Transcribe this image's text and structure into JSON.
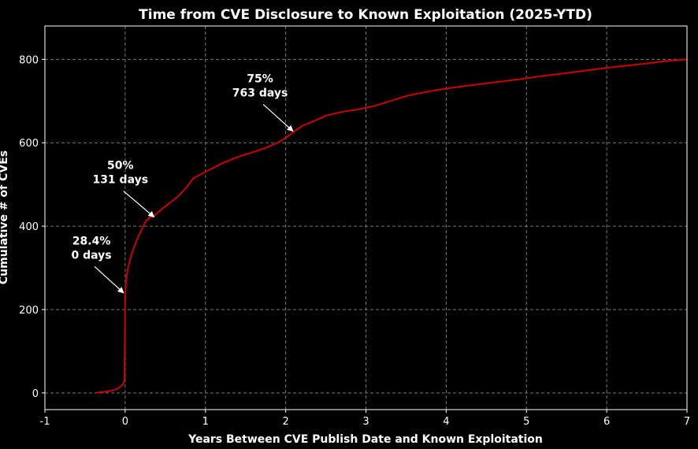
{
  "chart_data": {
    "type": "line",
    "title": "Time from CVE Disclosure to Known Exploitation (2025-YTD)",
    "xlabel": "Years Between CVE Publish Date and Known Exploitation",
    "ylabel": "Cumulative # of CVEs",
    "xlim": [
      -1,
      7
    ],
    "ylim": [
      -40,
      880
    ],
    "xticks": [
      "-1",
      "0",
      "1",
      "2",
      "3",
      "4",
      "5",
      "6",
      "7"
    ],
    "yticks": [
      "0",
      "200",
      "400",
      "600",
      "800"
    ],
    "grid": true,
    "line_color": "#cc0000",
    "series": [
      {
        "name": "",
        "x": [
          -0.37,
          -0.25,
          -0.15,
          -0.08,
          -0.03,
          -0.01,
          0.0,
          0.01,
          0.03,
          0.06,
          0.1,
          0.15,
          0.2,
          0.25,
          0.3,
          0.36,
          0.45,
          0.55,
          0.65,
          0.75,
          0.85,
          0.95,
          1.05,
          1.2,
          1.35,
          1.5,
          1.6,
          1.75,
          1.9,
          2.0,
          2.09,
          2.2,
          2.35,
          2.5,
          2.7,
          2.9,
          3.1,
          3.3,
          3.5,
          3.75,
          4.0,
          4.3,
          4.6,
          4.9,
          5.2,
          5.5,
          5.8,
          6.1,
          6.4,
          6.7,
          7.0
        ],
        "y": [
          0,
          3,
          6,
          12,
          20,
          30,
          225,
          270,
          295,
          320,
          345,
          370,
          390,
          410,
          420,
          425,
          440,
          455,
          470,
          490,
          515,
          525,
          535,
          550,
          562,
          572,
          578,
          588,
          600,
          612,
          625,
          640,
          652,
          665,
          674,
          680,
          688,
          700,
          712,
          722,
          730,
          738,
          745,
          752,
          760,
          767,
          775,
          782,
          788,
          795,
          800
        ]
      }
    ],
    "annotations": [
      {
        "line1": "28.4%",
        "line2": "0 days",
        "x": -0.02,
        "y": 240,
        "text_x": -0.42,
        "text_y": 356
      },
      {
        "line1": "50%",
        "line2": "131 days",
        "x": 0.36,
        "y": 422,
        "text_x": -0.06,
        "text_y": 537
      },
      {
        "line1": "75%",
        "line2": "763 days",
        "x": 2.09,
        "y": 628,
        "text_x": 1.68,
        "text_y": 745
      }
    ]
  }
}
